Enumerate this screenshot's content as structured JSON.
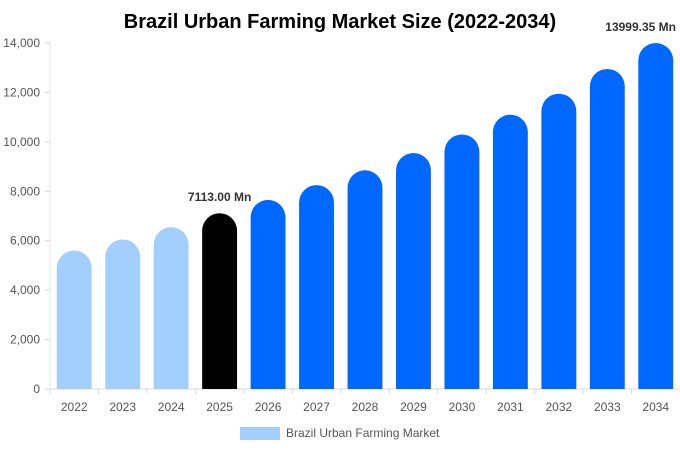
{
  "chart_data": {
    "type": "bar",
    "title": "Brazil Urban Farming Market Size (2022-2034)",
    "xlabel": "",
    "ylabel": "",
    "categories": [
      "2022",
      "2023",
      "2024",
      "2025",
      "2026",
      "2027",
      "2028",
      "2029",
      "2030",
      "2031",
      "2032",
      "2033",
      "2034"
    ],
    "series": [
      {
        "name": "Brazil Urban Farming Market",
        "values": [
          5600,
          6050,
          6550,
          7113,
          7650,
          8250,
          8850,
          9550,
          10300,
          11100,
          11950,
          12950,
          13999.35
        ]
      }
    ],
    "ylim": [
      0,
      14000
    ],
    "yticks": [
      0,
      2000,
      4000,
      6000,
      8000,
      10000,
      12000,
      14000
    ],
    "ytick_labels": [
      "0",
      "2,000",
      "4,000",
      "6,000",
      "8,000",
      "10,000",
      "12,000",
      "14,000"
    ],
    "data_labels": [
      {
        "category": "2025",
        "text": "7113.00 Mn"
      },
      {
        "category": "2034",
        "text": "13999.35 Mn"
      }
    ],
    "bar_colors": {
      "historical": "#a3cfff",
      "current": "#000000",
      "forecast": "#0068ff"
    },
    "bar_color_groups": [
      "historical",
      "historical",
      "historical",
      "current",
      "forecast",
      "forecast",
      "forecast",
      "forecast",
      "forecast",
      "forecast",
      "forecast",
      "forecast",
      "forecast"
    ],
    "grid": false,
    "legend_position": "bottom-center",
    "legend_color": "#a3cfff"
  }
}
